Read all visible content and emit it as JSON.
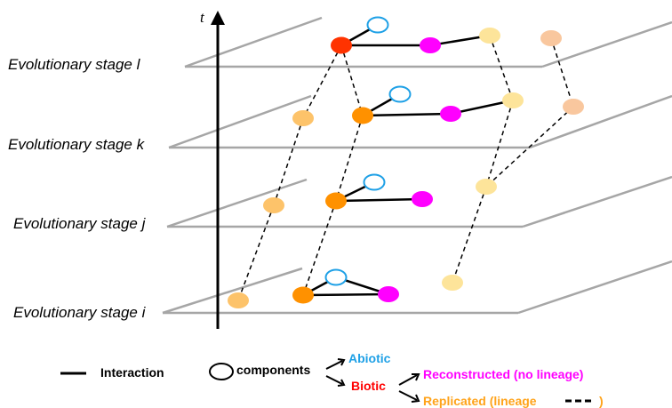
{
  "axis": {
    "label": "t"
  },
  "stages": [
    {
      "id": "l",
      "label": "Evolutionary stage l"
    },
    {
      "id": "k",
      "label": "Evolutionary stage k"
    },
    {
      "id": "j",
      "label": "Evolutionary stage j"
    },
    {
      "id": "i",
      "label": "Evolutionary stage i"
    }
  ],
  "legend": {
    "interaction": "Interaction",
    "components": "components",
    "abiotic": "Abiotic",
    "biotic": "Biotic",
    "reconstructed": "Reconstructed (no lineage)",
    "replicated_open": "Replicated (lineage",
    "replicated_close": ")"
  },
  "colors": {
    "plane": "#a6a6a6",
    "abiotic": "#1ea0e6",
    "biotic": "#ff0000",
    "reconstructed": "#ff00ff",
    "replicated": "#ffa31a",
    "node_red": "#ff3300",
    "node_orange": "#ff9100",
    "node_light_orange": "#fdc36a",
    "node_pale_yellow": "#fde49a",
    "node_peach": "#f9c79e",
    "node_magenta": "#ff00ff"
  }
}
